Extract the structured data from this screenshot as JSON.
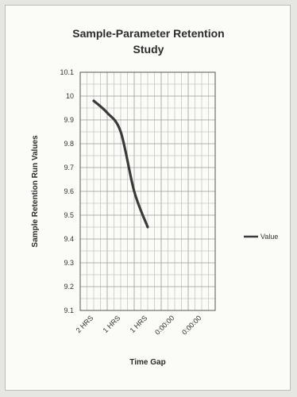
{
  "chart_data": {
    "type": "line",
    "title_lines": [
      "Sample-Parameter Retention",
      "Study"
    ],
    "xlabel": "Time Gap",
    "ylabel": "Sample Retention Run Values",
    "categories": [
      "2 HRS",
      "1 HRS",
      "1 HRS",
      "0:00:00",
      "0:00:00"
    ],
    "ylim": [
      9.1,
      10.1
    ],
    "yticks": [
      "10.1",
      "10",
      "9.9",
      "9.8",
      "9.7",
      "9.6",
      "9.5",
      "9.4",
      "9.3",
      "9.2",
      "9.1"
    ],
    "series": [
      {
        "name": "Value",
        "color": "#3a3a3a",
        "x": [
          0,
          0.5,
          1,
          1.5,
          2
        ],
        "values": [
          9.98,
          9.93,
          9.85,
          9.6,
          9.45
        ]
      }
    ],
    "grid": true,
    "legend_position": "right"
  }
}
